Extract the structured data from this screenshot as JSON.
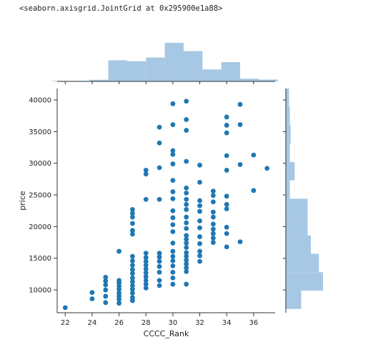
{
  "output_repr": "<seaborn.axisgrid.JointGrid at 0x295900e1a88>",
  "colors": {
    "points": "#1f77b4",
    "bars": "#a6c8e4",
    "axis": "#333333"
  },
  "chart_data": {
    "type": "scatter",
    "xlabel": "CCCC_Rank",
    "ylabel": "price",
    "xlim": [
      21.4,
      37.6
    ],
    "ylim": [
      6400,
      41800
    ],
    "x_ticks": [
      22,
      24,
      26,
      28,
      30,
      32,
      34,
      36
    ],
    "y_ticks": [
      10000,
      15000,
      20000,
      25000,
      30000,
      35000,
      40000
    ],
    "grid": false,
    "points": [
      [
        22,
        7200
      ],
      [
        24,
        8600
      ],
      [
        24,
        9600
      ],
      [
        25,
        8000
      ],
      [
        25,
        9000
      ],
      [
        25,
        10000
      ],
      [
        25,
        10800
      ],
      [
        25,
        11400
      ],
      [
        25,
        12000
      ],
      [
        26,
        7900
      ],
      [
        26,
        8500
      ],
      [
        26,
        9000
      ],
      [
        26,
        9500
      ],
      [
        26,
        10100
      ],
      [
        26,
        10600
      ],
      [
        26,
        11100
      ],
      [
        26,
        11500
      ],
      [
        26,
        16100
      ],
      [
        27,
        8300
      ],
      [
        27,
        8800
      ],
      [
        27,
        9500
      ],
      [
        27,
        10100
      ],
      [
        27,
        10700
      ],
      [
        27,
        11300
      ],
      [
        27,
        11900
      ],
      [
        27,
        12600
      ],
      [
        27,
        13200
      ],
      [
        27,
        13900
      ],
      [
        27,
        14600
      ],
      [
        27,
        15300
      ],
      [
        27,
        18800
      ],
      [
        27,
        19400
      ],
      [
        27,
        20500
      ],
      [
        27,
        21500
      ],
      [
        27,
        22100
      ],
      [
        27,
        22700
      ],
      [
        28,
        10300
      ],
      [
        28,
        10900
      ],
      [
        28,
        11500
      ],
      [
        28,
        12100
      ],
      [
        28,
        12700
      ],
      [
        28,
        13300
      ],
      [
        28,
        13900
      ],
      [
        28,
        14500
      ],
      [
        28,
        15100
      ],
      [
        28,
        15800
      ],
      [
        28,
        24300
      ],
      [
        28,
        28300
      ],
      [
        28,
        28900
      ],
      [
        29,
        10700
      ],
      [
        29,
        11500
      ],
      [
        29,
        12800
      ],
      [
        29,
        13700
      ],
      [
        29,
        14500
      ],
      [
        29,
        15200
      ],
      [
        29,
        15800
      ],
      [
        29,
        24300
      ],
      [
        29,
        29300
      ],
      [
        29,
        33200
      ],
      [
        29,
        35700
      ],
      [
        30,
        10900
      ],
      [
        30,
        11900
      ],
      [
        30,
        12800
      ],
      [
        30,
        13800
      ],
      [
        30,
        14600
      ],
      [
        30,
        15300
      ],
      [
        30,
        16100
      ],
      [
        30,
        17400
      ],
      [
        30,
        19200
      ],
      [
        30,
        20300
      ],
      [
        30,
        21400
      ],
      [
        30,
        22500
      ],
      [
        30,
        24400
      ],
      [
        30,
        25500
      ],
      [
        30,
        27300
      ],
      [
        30,
        29900
      ],
      [
        30,
        31400
      ],
      [
        30,
        32000
      ],
      [
        30,
        36100
      ],
      [
        30,
        39400
      ],
      [
        31,
        10900
      ],
      [
        31,
        12900
      ],
      [
        31,
        13500
      ],
      [
        31,
        14100
      ],
      [
        31,
        14700
      ],
      [
        31,
        15300
      ],
      [
        31,
        15900
      ],
      [
        31,
        16700
      ],
      [
        31,
        17400
      ],
      [
        31,
        18000
      ],
      [
        31,
        18600
      ],
      [
        31,
        19700
      ],
      [
        31,
        20600
      ],
      [
        31,
        21500
      ],
      [
        31,
        22700
      ],
      [
        31,
        23500
      ],
      [
        31,
        24300
      ],
      [
        31,
        25300
      ],
      [
        31,
        26100
      ],
      [
        31,
        30300
      ],
      [
        31,
        35200
      ],
      [
        31,
        36900
      ],
      [
        31,
        39800
      ],
      [
        32,
        14500
      ],
      [
        32,
        15400
      ],
      [
        32,
        16100
      ],
      [
        32,
        17300
      ],
      [
        32,
        18400
      ],
      [
        32,
        19800
      ],
      [
        32,
        20900
      ],
      [
        32,
        22400
      ],
      [
        32,
        23300
      ],
      [
        32,
        24100
      ],
      [
        32,
        27000
      ],
      [
        32,
        29700
      ],
      [
        33,
        17500
      ],
      [
        33,
        18200
      ],
      [
        33,
        18900
      ],
      [
        33,
        19600
      ],
      [
        33,
        20400
      ],
      [
        33,
        21500
      ],
      [
        33,
        22300
      ],
      [
        33,
        23900
      ],
      [
        33,
        24900
      ],
      [
        33,
        25600
      ],
      [
        34,
        16800
      ],
      [
        34,
        18900
      ],
      [
        34,
        19900
      ],
      [
        34,
        22800
      ],
      [
        34,
        23500
      ],
      [
        34,
        24800
      ],
      [
        34,
        28900
      ],
      [
        34,
        31200
      ],
      [
        34,
        34800
      ],
      [
        34,
        36000
      ],
      [
        34,
        37300
      ],
      [
        35,
        17600
      ],
      [
        35,
        29800
      ],
      [
        35,
        36100
      ],
      [
        35,
        39300
      ],
      [
        36,
        25700
      ],
      [
        36,
        31300
      ],
      [
        37,
        29200
      ]
    ],
    "x_hist": {
      "bin_edges": [
        21,
        22.4,
        23.8,
        25.2,
        26.6,
        28,
        29.4,
        30.8,
        32.2,
        33.6,
        35,
        36.4,
        37.8
      ],
      "density": [
        0.006,
        0.006,
        0.018,
        0.23,
        0.22,
        0.26,
        0.42,
        0.33,
        0.13,
        0.21,
        0.03,
        0.02
      ]
    },
    "y_hist": {
      "bin_edges": [
        7000,
        9900,
        12800,
        15700,
        18600,
        21500,
        24400,
        27300,
        30200,
        33100,
        36000,
        38900,
        41800
      ],
      "density": [
        0.38,
        0.92,
        0.82,
        0.62,
        0.54,
        0.54,
        0.1,
        0.22,
        0.1,
        0.12,
        0.1,
        0.08
      ]
    }
  }
}
